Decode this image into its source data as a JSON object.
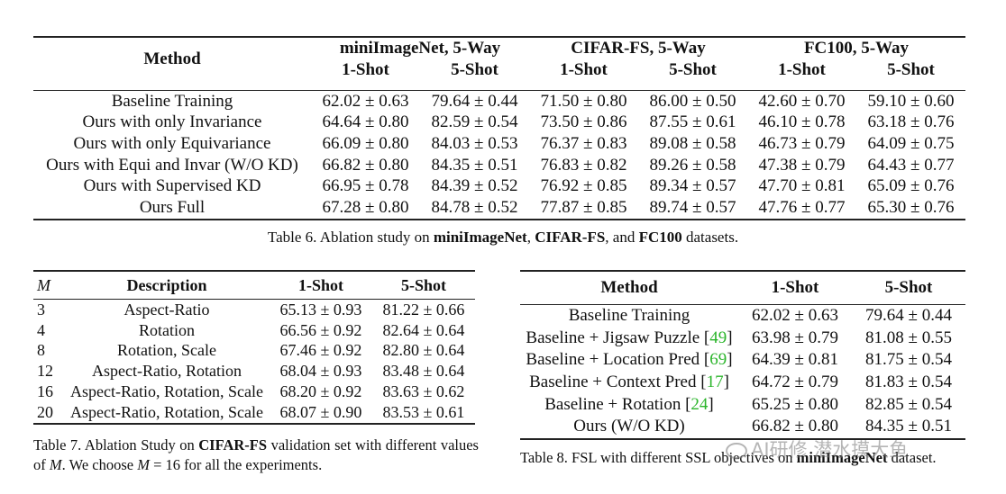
{
  "table6": {
    "header": {
      "method": "Method",
      "groups": [
        "miniImageNet, 5-Way",
        "CIFAR-FS, 5-Way",
        "FC100, 5-Way"
      ],
      "shots": [
        "1-Shot",
        "5-Shot",
        "1-Shot",
        "5-Shot",
        "1-Shot",
        "5-Shot"
      ]
    },
    "rows": [
      {
        "method": "Baseline Training",
        "values": [
          "62.02 ± 0.63",
          "79.64 ± 0.44",
          "71.50 ± 0.80",
          "86.00 ± 0.50",
          "42.60 ± 0.70",
          "59.10 ± 0.60"
        ]
      },
      {
        "method": "Ours with only Invariance",
        "values": [
          "64.64 ± 0.80",
          "82.59 ± 0.54",
          "73.50 ± 0.86",
          "87.55 ± 0.61",
          "46.10 ± 0.78",
          "63.18 ± 0.76"
        ]
      },
      {
        "method": "Ours with only Equivariance",
        "values": [
          "66.09 ± 0.80",
          "84.03 ± 0.53",
          "76.37 ± 0.83",
          "89.08 ± 0.58",
          "46.73 ± 0.79",
          "64.09 ± 0.75"
        ]
      },
      {
        "method": "Ours with Equi and Invar (W/O KD)",
        "values": [
          "66.82 ± 0.80",
          "84.35 ± 0.51",
          "76.83 ± 0.82",
          "89.26 ± 0.58",
          "47.38 ± 0.79",
          "64.43 ± 0.77"
        ]
      },
      {
        "method": "Ours with Supervised KD",
        "values": [
          "66.95 ± 0.78",
          "84.39 ± 0.52",
          "76.92 ± 0.85",
          "89.34 ± 0.57",
          "47.70 ± 0.81",
          "65.09 ± 0.76"
        ]
      },
      {
        "method": "Ours Full",
        "values": [
          "67.28 ± 0.80",
          "84.78 ± 0.52",
          "77.87 ± 0.85",
          "89.74 ± 0.57",
          "47.76 ± 0.77",
          "65.30 ± 0.76"
        ]
      }
    ],
    "caption": {
      "prefix": "Table 6. Ablation study on ",
      "d1": "miniImageNet",
      "sep1": ", ",
      "d2": "CIFAR-FS",
      "sep2": ", and ",
      "d3": "FC100",
      "suffix": " datasets."
    }
  },
  "table7": {
    "header": {
      "m": "M",
      "description": "Description",
      "shot1": "1-Shot",
      "shot5": "5-Shot"
    },
    "rows": [
      {
        "m": "3",
        "description": "Aspect-Ratio",
        "shot1": "65.13 ± 0.93",
        "shot5": "81.22 ± 0.66"
      },
      {
        "m": "4",
        "description": "Rotation",
        "shot1": "66.56 ± 0.92",
        "shot5": "82.64 ± 0.64"
      },
      {
        "m": "8",
        "description": "Rotation, Scale",
        "shot1": "67.46 ± 0.92",
        "shot5": "82.80 ± 0.64"
      },
      {
        "m": "12",
        "description": "Aspect-Ratio, Rotation",
        "shot1": "68.04 ± 0.93",
        "shot5": "83.48 ± 0.64"
      },
      {
        "m": "16",
        "description": "Aspect-Ratio, Rotation, Scale",
        "shot1": "68.20 ± 0.92",
        "shot5": "83.63 ± 0.62"
      },
      {
        "m": "20",
        "description": "Aspect-Ratio, Rotation, Scale",
        "shot1": "68.07 ± 0.90",
        "shot5": "83.53 ± 0.61"
      }
    ],
    "caption": {
      "prefix": "Table 7. Ablation Study on ",
      "dataset": "CIFAR-FS",
      "mid1": " validation set with different values of ",
      "m1": "M",
      "mid2": ". We choose ",
      "m2": "M",
      "eq": " = 16 for all the experiments."
    }
  },
  "table8": {
    "header": {
      "method": "Method",
      "shot1": "1-Shot",
      "shot5": "5-Shot"
    },
    "rows": [
      {
        "method": "Baseline Training",
        "cite": "",
        "shot1": "62.02 ± 0.63",
        "shot5": "79.64 ± 0.44"
      },
      {
        "method": "Baseline + Jigsaw Puzzle ",
        "cite": "49",
        "shot1": "63.98 ± 0.79",
        "shot5": "81.08 ± 0.55"
      },
      {
        "method": "Baseline + Location Pred ",
        "cite": "69",
        "shot1": "64.39 ± 0.81",
        "shot5": "81.75 ± 0.54"
      },
      {
        "method": "Baseline + Context Pred ",
        "cite": "17",
        "shot1": "64.72 ± 0.79",
        "shot5": "81.83 ± 0.54"
      },
      {
        "method": "Baseline + Rotation ",
        "cite": "24",
        "shot1": "65.25 ± 0.80",
        "shot5": "82.85 ± 0.54"
      },
      {
        "method": "Ours (W/O KD)",
        "cite": "",
        "shot1": "66.82 ± 0.80",
        "shot5": "84.35 ± 0.51"
      }
    ],
    "caption": {
      "prefix": "Table 8. FSL with different SSL objectives on ",
      "dataset": "miniImageNet",
      "suffix": " dataset."
    }
  },
  "watermark": {
    "text": "AI研修 潜水摸大鱼",
    "icon": "wechat-icon"
  },
  "colors": {
    "cite": "#2bb52b",
    "rule": "#222222"
  }
}
